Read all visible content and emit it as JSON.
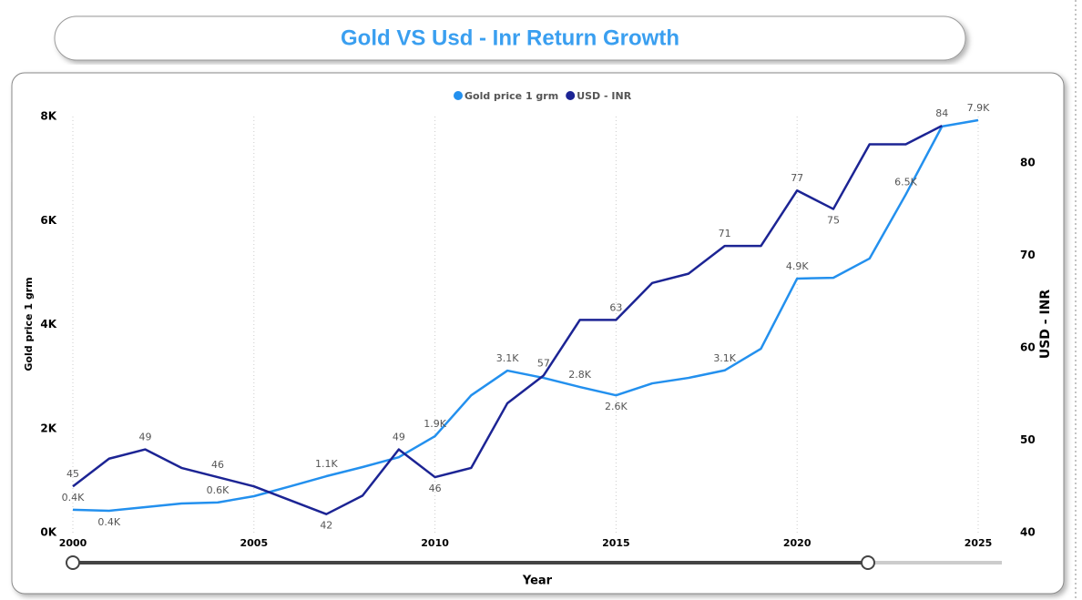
{
  "chart_data": {
    "type": "line",
    "title": "Gold VS Usd - Inr Return Growth",
    "x_label": "Year",
    "y_label": "Gold price 1 grm",
    "y2_label": "USD - INR",
    "x": [
      2000,
      2001,
      2002,
      2003,
      2004,
      2005,
      2006,
      2007,
      2008,
      2009,
      2010,
      2011,
      2012,
      2013,
      2014,
      2015,
      2016,
      2017,
      2018,
      2019,
      2020,
      2021,
      2022,
      2023,
      2024,
      2025
    ],
    "xlim": [
      2000,
      2025
    ],
    "xticks": [
      2000,
      2005,
      2010,
      2015,
      2020,
      2025
    ],
    "ylim": [
      0,
      8000
    ],
    "yticks": [
      {
        "value": 0,
        "label": "0K"
      },
      {
        "value": 2000,
        "label": "2K"
      },
      {
        "value": 4000,
        "label": "4K"
      },
      {
        "value": 6000,
        "label": "6K"
      },
      {
        "value": 8000,
        "label": "8K"
      }
    ],
    "y2lim": [
      40,
      85
    ],
    "y2ticks": [
      40,
      50,
      60,
      70,
      80
    ],
    "grid_x": true,
    "legend": "top",
    "series": [
      {
        "name": "Gold price 1 grm",
        "color": "#2390ee",
        "axis": "y",
        "values": [
          440,
          420,
          490,
          560,
          580,
          700,
          890,
          1085,
          1260,
          1450,
          1855,
          2640,
          3115,
          2975,
          2800,
          2640,
          2870,
          2975,
          3120,
          3535,
          4885,
          4900,
          5270,
          6500,
          7810,
          7930
        ],
        "value_labels": [
          "0.4K",
          "0.4K",
          null,
          null,
          "0.6K",
          null,
          null,
          "1.1K",
          null,
          null,
          "1.9K",
          null,
          "3.1K",
          null,
          "2.8K",
          "2.6K",
          null,
          null,
          "3.1K",
          null,
          "4.9K",
          null,
          null,
          "6.5K",
          null,
          "7.9K"
        ]
      },
      {
        "name": "USD - INR",
        "color": "#1c2494",
        "axis": "y2",
        "values": [
          45,
          48,
          49,
          47,
          46,
          45,
          43.5,
          42,
          44,
          49,
          46,
          47,
          54,
          57,
          63,
          63,
          67,
          68,
          71,
          71,
          77,
          75,
          82,
          82,
          84,
          null
        ],
        "value_labels": [
          "45",
          null,
          "49",
          null,
          "46",
          null,
          null,
          "42",
          null,
          "49",
          "46",
          null,
          null,
          "57",
          null,
          "63",
          null,
          null,
          "71",
          null,
          "77",
          "75",
          null,
          null,
          "84",
          null
        ]
      }
    ]
  }
}
